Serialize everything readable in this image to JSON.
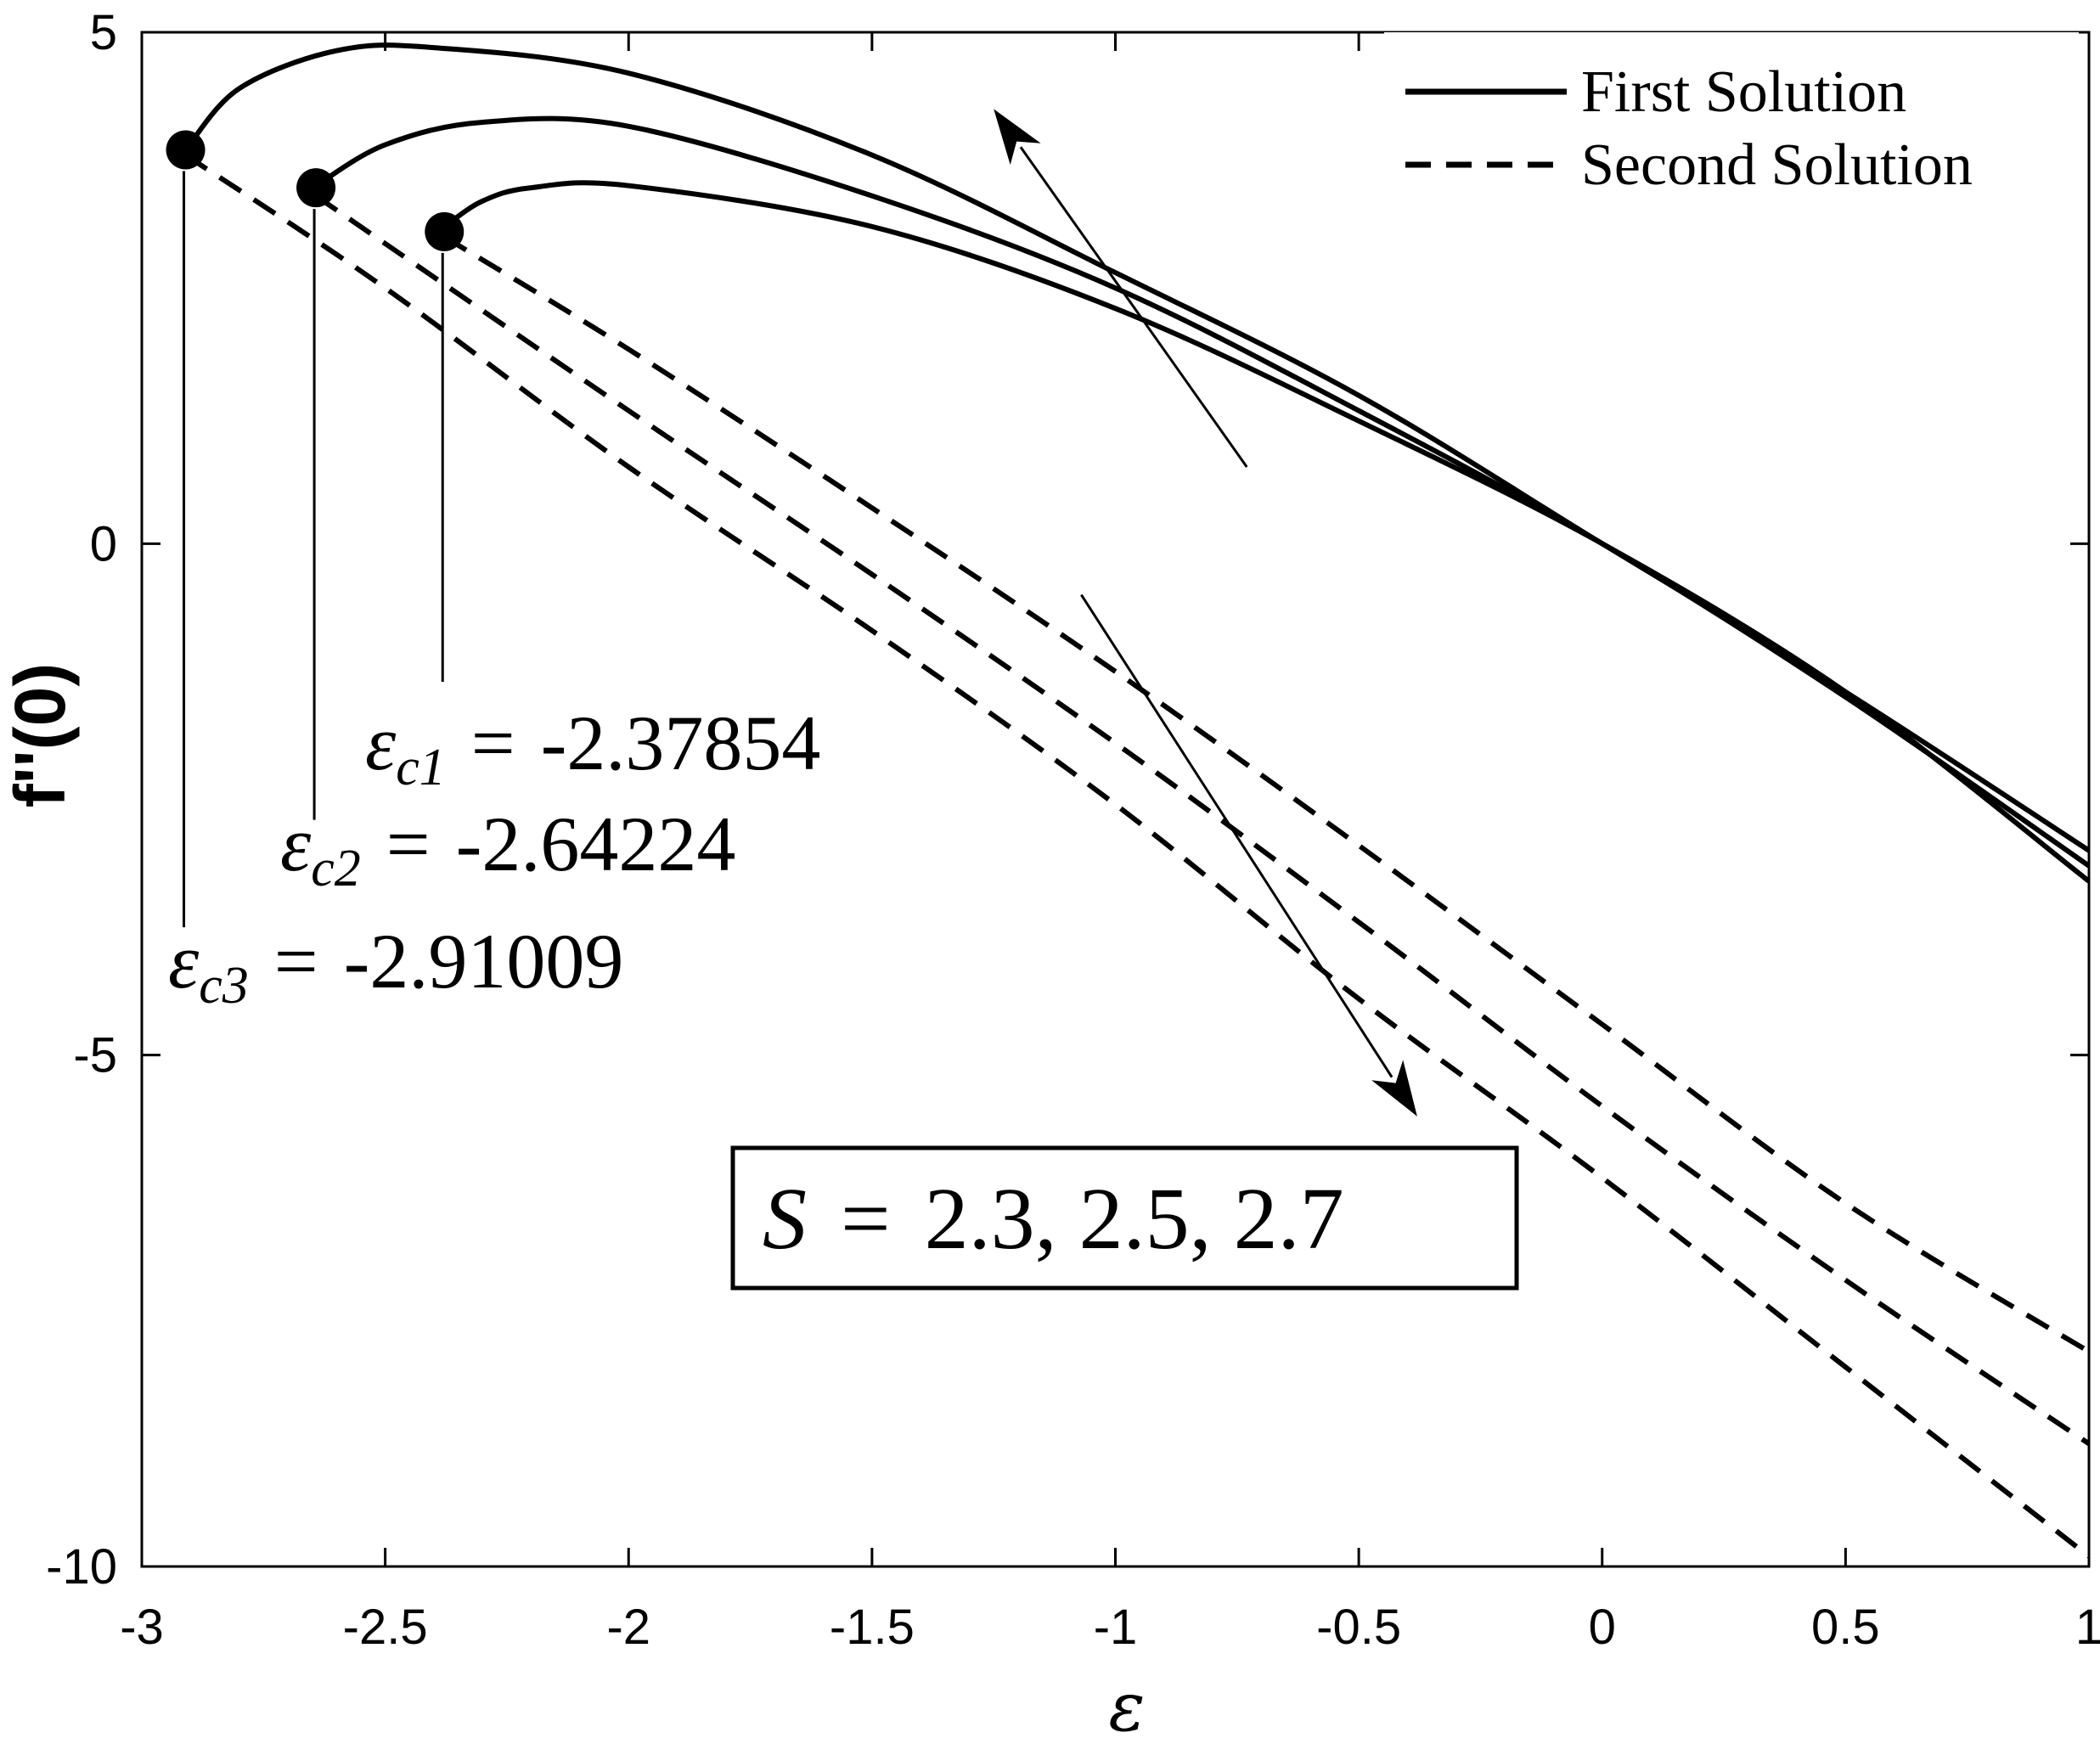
{
  "chart_data": {
    "type": "line",
    "title": "",
    "xlabel": "ε",
    "ylabel": "f''(0)",
    "xlim": [
      -3,
      1
    ],
    "ylim": [
      -10,
      5
    ],
    "xticks": [
      -3,
      -2.5,
      -2,
      -1.5,
      -1,
      -0.5,
      0,
      0.5,
      1
    ],
    "xtick_labels": [
      "-3",
      "-2.5",
      "-2",
      "-1.5",
      "-1",
      "-0.5",
      "0",
      "0.5",
      "1"
    ],
    "yticks": [
      -10,
      -5,
      0,
      5
    ],
    "ytick_labels": [
      "-10",
      "-5",
      "0",
      "5"
    ],
    "grid": false,
    "legend_position": "top-right",
    "legend": [
      {
        "label": "First Solution",
        "style": "solid"
      },
      {
        "label": "Second Solution",
        "style": "dashed"
      }
    ],
    "series": [
      {
        "style": "solid",
        "S": 2.3,
        "x": [
          -2.37854,
          -2.3,
          -2.2,
          -2.0,
          -1.5,
          -1.0,
          -0.5,
          0.0,
          0.5,
          1.0
        ],
        "y": [
          3.1,
          3.35,
          3.48,
          3.5,
          3.1,
          2.3,
          1.2,
          0.0,
          -1.45,
          -3.3
        ]
      },
      {
        "style": "solid",
        "S": 2.5,
        "x": [
          -2.64224,
          -2.5,
          -2.3,
          -2.0,
          -1.5,
          -1.0,
          -0.5,
          0.0,
          0.5,
          1.0
        ],
        "y": [
          3.5,
          3.9,
          4.12,
          4.08,
          3.4,
          2.5,
          1.3,
          0.0,
          -1.5,
          -3.15
        ]
      },
      {
        "style": "solid",
        "S": 2.7,
        "x": [
          -2.91009,
          -2.8,
          -2.6,
          -2.4,
          -2.0,
          -1.5,
          -1.0,
          -0.5,
          0.0,
          0.5,
          1.0
        ],
        "y": [
          3.85,
          4.45,
          4.82,
          4.85,
          4.6,
          3.8,
          2.65,
          1.45,
          0.0,
          -1.45,
          -3.0
        ]
      },
      {
        "style": "dashed",
        "S": 2.3,
        "x": [
          -2.37854,
          -2.0,
          -1.5,
          -1.0,
          -0.5,
          0.0,
          0.5,
          1.0
        ],
        "y": [
          3.0,
          1.9,
          0.35,
          -1.25,
          -2.95,
          -4.7,
          -6.45,
          -7.9
        ]
      },
      {
        "style": "dashed",
        "S": 2.5,
        "x": [
          -2.64224,
          -2.0,
          -1.5,
          -1.0,
          -0.5,
          0.0,
          0.5,
          1.0
        ],
        "y": [
          3.4,
          1.3,
          -0.3,
          -1.95,
          -3.7,
          -5.5,
          -7.2,
          -8.8
        ]
      },
      {
        "style": "dashed",
        "S": 2.7,
        "x": [
          -2.91009,
          -2.5,
          -2.0,
          -1.5,
          -1.0,
          -0.5,
          0.0,
          0.5,
          1.0
        ],
        "y": [
          3.8,
          2.5,
          0.75,
          -0.85,
          -2.55,
          -4.45,
          -6.2,
          -8.05,
          -9.9
        ]
      }
    ],
    "critical_points": [
      {
        "x": -2.37854,
        "y": 3.05
      },
      {
        "x": -2.64224,
        "y": 3.48
      },
      {
        "x": -2.91009,
        "y": 3.85
      }
    ],
    "annotations": [
      {
        "symbol": "ε",
        "subscript": "c1",
        "equals": "=",
        "value": "-2.37854",
        "x": -2.37854
      },
      {
        "symbol": "ε",
        "subscript": "c2",
        "equals": "=",
        "value": "-2.64224",
        "x": -2.64224
      },
      {
        "symbol": "ε",
        "subscript": "c3",
        "equals": "=",
        "value": "-2.91009",
        "x": -2.91009
      }
    ],
    "parameter_box": {
      "symbol": "S",
      "equals": "=",
      "values": "2.3, 2.5, 2.7"
    },
    "arrows": [
      {
        "from": [
          -0.73,
          0.75
        ],
        "to": [
          -1.25,
          4.25
        ],
        "meaning": "first solution increases with S"
      },
      {
        "from": [
          -1.07,
          -0.5
        ],
        "to": [
          -0.38,
          -5.6
        ],
        "meaning": "second solution decreases with S"
      }
    ]
  }
}
